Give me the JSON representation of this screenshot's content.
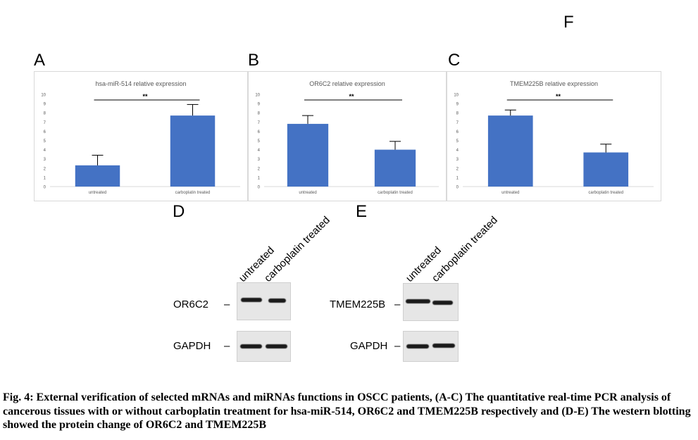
{
  "panels": {
    "A": "A",
    "B": "B",
    "C": "C",
    "D": "D",
    "E": "E",
    "F": "F"
  },
  "chart_data": [
    {
      "type": "bar",
      "title": "hsa-miR-514 relative expression",
      "categories": [
        "untreated",
        "carboplatin treated"
      ],
      "values": [
        2.3,
        7.7
      ],
      "error": [
        1.1,
        1.2
      ],
      "ylim": [
        0,
        10
      ],
      "yticks": [
        "0",
        "1",
        "2",
        "3",
        "4",
        "5",
        "6",
        "7",
        "8",
        "9",
        "10"
      ],
      "significance": "**",
      "color": "#4472c4",
      "grid": false
    },
    {
      "type": "bar",
      "title": "OR6C2 relative expression",
      "categories": [
        "untreated",
        "carboplatin treated"
      ],
      "values": [
        6.8,
        4.0
      ],
      "error": [
        0.9,
        0.9
      ],
      "ylim": [
        0,
        10
      ],
      "yticks": [
        "0",
        "1",
        "2",
        "3",
        "4",
        "5",
        "6",
        "7",
        "8",
        "9",
        "10"
      ],
      "significance": "**",
      "color": "#4472c4",
      "grid": false
    },
    {
      "type": "bar",
      "title": "TMEM225B relative expression",
      "categories": [
        "untreated",
        "carboplatin treated"
      ],
      "values": [
        7.7,
        3.7
      ],
      "error": [
        0.6,
        0.9
      ],
      "ylim": [
        0,
        10
      ],
      "yticks": [
        "0",
        "1",
        "2",
        "3",
        "4",
        "5",
        "6",
        "7",
        "8",
        "9",
        "10"
      ],
      "significance": "**",
      "color": "#4472c4",
      "grid": false
    }
  ],
  "blots": {
    "D": {
      "lanes": [
        "untreated",
        "carboplatin treated"
      ],
      "protein": "OR6C2",
      "control": "GAPDH"
    },
    "E": {
      "lanes": [
        "untreated",
        "carboplatin treated"
      ],
      "protein": "TMEM225B",
      "control": "GAPDH"
    }
  },
  "caption": "Fig. 4: External verification of selected mRNAs and miRNAs functions in OSCC patients, (A-C) The quantitative real-time PCR analysis of cancerous tissues with or without carboplatin treatment for hsa-miR-514, OR6C2 and TMEM225B respectively and (D-E) The western blotting showed the protein change of OR6C2 and TMEM225B"
}
